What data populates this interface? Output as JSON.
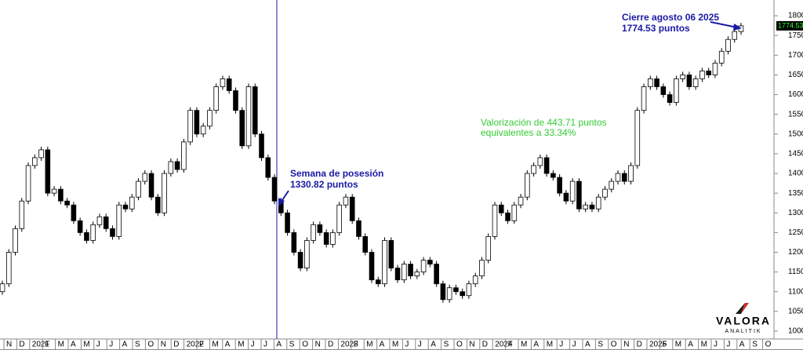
{
  "chart_data": {
    "type": "candlestick",
    "ylim": [
      980,
      1840
    ],
    "yticks": [
      1000,
      1050,
      1100,
      1150,
      1200,
      1250,
      1300,
      1350,
      1400,
      1450,
      1500,
      1550,
      1600,
      1650,
      1700,
      1750,
      1800
    ],
    "month_labels": [
      "N",
      "D",
      "2021",
      "F",
      "M",
      "A",
      "M",
      "J",
      "J",
      "A",
      "S",
      "O",
      "N",
      "D",
      "2022",
      "F",
      "M",
      "A",
      "M",
      "J",
      "J",
      "A",
      "S",
      "O",
      "N",
      "D",
      "2023",
      "F",
      "M",
      "A",
      "M",
      "J",
      "J",
      "A",
      "S",
      "O",
      "N",
      "D",
      "2024",
      "F",
      "M",
      "A",
      "M",
      "J",
      "J",
      "A",
      "S",
      "O",
      "N",
      "D",
      "2025",
      "F",
      "M",
      "A",
      "M",
      "J",
      "J",
      "A",
      "S",
      "O"
    ],
    "open": [
      1100,
      1120,
      1200,
      1260,
      1330,
      1420,
      1440,
      1460,
      1350,
      1360,
      1330,
      1320,
      1280,
      1250,
      1230,
      1270,
      1290,
      1260,
      1240,
      1320,
      1310,
      1340,
      1380,
      1400,
      1340,
      1300,
      1400,
      1430,
      1410,
      1480,
      1560,
      1500,
      1520,
      1560,
      1620,
      1640,
      1610,
      1560,
      1470,
      1620,
      1500,
      1440,
      1390,
      1330,
      1300,
      1250,
      1200,
      1160,
      1230,
      1270,
      1250,
      1220,
      1250,
      1320,
      1340,
      1280,
      1240,
      1200,
      1130,
      1120,
      1230,
      1160,
      1130,
      1170,
      1140,
      1150,
      1180,
      1170,
      1120,
      1080,
      1110,
      1100,
      1090,
      1120,
      1140,
      1180,
      1240,
      1320,
      1300,
      1280,
      1320,
      1340,
      1400,
      1420,
      1440,
      1400,
      1390,
      1350,
      1330,
      1380,
      1310,
      1320,
      1310,
      1340,
      1360,
      1380,
      1400,
      1380,
      1420,
      1560,
      1620,
      1640,
      1620,
      1600,
      1580,
      1640,
      1650,
      1620,
      1640,
      1660,
      1650,
      1680,
      1710,
      1740,
      1760
    ],
    "high": [
      1128,
      1208,
      1268,
      1338,
      1428,
      1448,
      1468,
      1468,
      1368,
      1368,
      1338,
      1328,
      1288,
      1258,
      1278,
      1298,
      1298,
      1268,
      1328,
      1328,
      1348,
      1388,
      1408,
      1408,
      1348,
      1408,
      1438,
      1438,
      1488,
      1568,
      1568,
      1528,
      1568,
      1628,
      1648,
      1648,
      1618,
      1568,
      1628,
      1628,
      1508,
      1448,
      1398,
      1338,
      1308,
      1258,
      1208,
      1238,
      1278,
      1278,
      1258,
      1258,
      1328,
      1348,
      1348,
      1288,
      1248,
      1208,
      1138,
      1238,
      1238,
      1168,
      1178,
      1178,
      1158,
      1188,
      1188,
      1178,
      1128,
      1118,
      1118,
      1108,
      1128,
      1148,
      1188,
      1248,
      1328,
      1328,
      1308,
      1328,
      1348,
      1408,
      1428,
      1448,
      1448,
      1408,
      1398,
      1358,
      1388,
      1388,
      1328,
      1328,
      1348,
      1368,
      1388,
      1408,
      1408,
      1428,
      1568,
      1628,
      1648,
      1648,
      1628,
      1608,
      1648,
      1658,
      1658,
      1648,
      1668,
      1668,
      1688,
      1718,
      1748,
      1768,
      1782
    ],
    "low": [
      1092,
      1112,
      1192,
      1252,
      1322,
      1412,
      1432,
      1342,
      1342,
      1322,
      1312,
      1272,
      1242,
      1222,
      1222,
      1262,
      1252,
      1232,
      1232,
      1302,
      1302,
      1332,
      1372,
      1332,
      1292,
      1292,
      1392,
      1402,
      1402,
      1472,
      1492,
      1492,
      1512,
      1552,
      1612,
      1602,
      1552,
      1462,
      1462,
      1492,
      1432,
      1382,
      1322,
      1292,
      1242,
      1192,
      1152,
      1152,
      1222,
      1242,
      1212,
      1212,
      1242,
      1312,
      1272,
      1232,
      1192,
      1122,
      1112,
      1112,
      1152,
      1122,
      1122,
      1132,
      1132,
      1142,
      1162,
      1112,
      1072,
      1072,
      1092,
      1082,
      1082,
      1112,
      1132,
      1172,
      1232,
      1292,
      1272,
      1272,
      1312,
      1332,
      1392,
      1412,
      1392,
      1382,
      1342,
      1322,
      1322,
      1302,
      1302,
      1302,
      1302,
      1332,
      1352,
      1372,
      1372,
      1372,
      1412,
      1552,
      1612,
      1612,
      1592,
      1572,
      1572,
      1632,
      1612,
      1612,
      1632,
      1642,
      1642,
      1672,
      1702,
      1732,
      1752
    ],
    "close": [
      1120,
      1200,
      1260,
      1330,
      1420,
      1440,
      1460,
      1350,
      1360,
      1330,
      1320,
      1280,
      1250,
      1230,
      1270,
      1290,
      1260,
      1240,
      1320,
      1310,
      1340,
      1380,
      1400,
      1340,
      1300,
      1400,
      1430,
      1410,
      1480,
      1560,
      1500,
      1520,
      1560,
      1620,
      1640,
      1610,
      1560,
      1470,
      1620,
      1500,
      1440,
      1390,
      1330,
      1300,
      1250,
      1200,
      1160,
      1230,
      1270,
      1250,
      1220,
      1250,
      1320,
      1340,
      1280,
      1240,
      1200,
      1130,
      1120,
      1230,
      1160,
      1130,
      1170,
      1140,
      1150,
      1180,
      1170,
      1120,
      1080,
      1110,
      1100,
      1090,
      1120,
      1140,
      1180,
      1240,
      1320,
      1300,
      1280,
      1320,
      1340,
      1400,
      1420,
      1440,
      1400,
      1390,
      1350,
      1330,
      1380,
      1310,
      1320,
      1310,
      1340,
      1360,
      1380,
      1400,
      1380,
      1420,
      1560,
      1620,
      1640,
      1620,
      1600,
      1580,
      1640,
      1650,
      1620,
      1640,
      1660,
      1650,
      1680,
      1710,
      1740,
      1760,
      1774.53
    ],
    "up_color": "#ffffff",
    "down_color": "#000000",
    "marker_color": "#1a1aa6",
    "annotations": {
      "close_title": "Cierre agosto 06 2025",
      "close_value": "1774.53  puntos",
      "possession_title": "Semana de posesión",
      "possession_value": "1330.82 puntos",
      "gain_line1": "Valorización de 443.71  puntos",
      "gain_line2": "equivalentes a 33.34%"
    },
    "logo": "VALORA",
    "logo_sub": "ANALITIK"
  }
}
